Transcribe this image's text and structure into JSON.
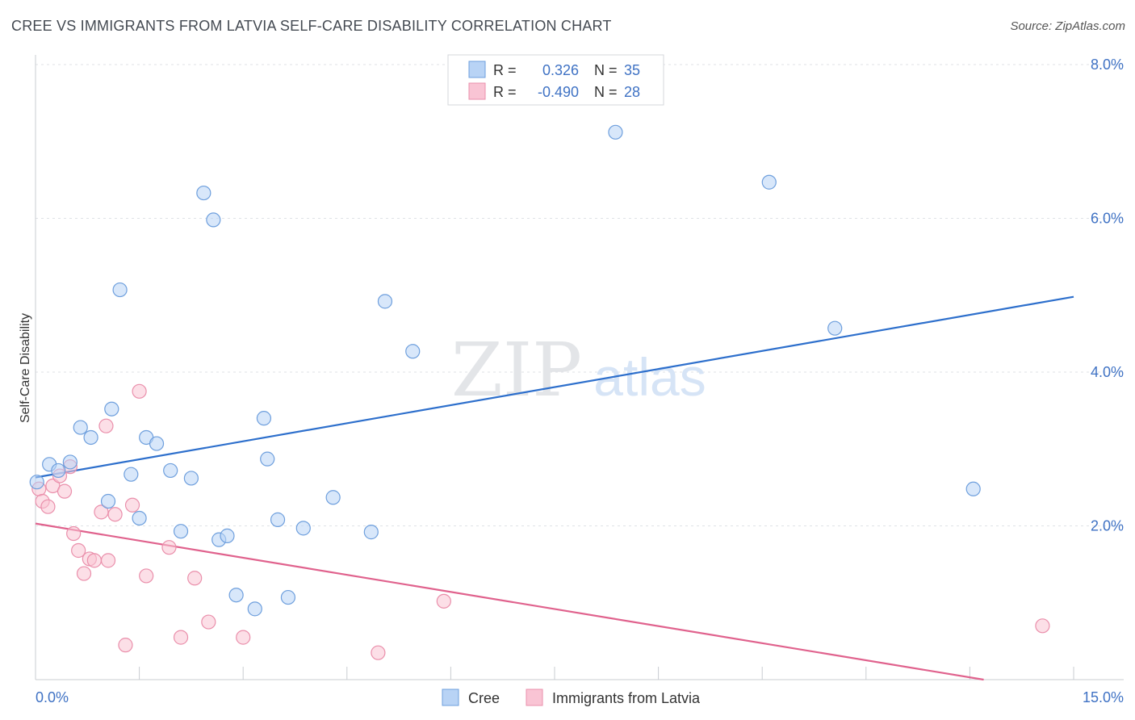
{
  "title": "CREE VS IMMIGRANTS FROM LATVIA SELF-CARE DISABILITY CORRELATION CHART",
  "source": "Source: ZipAtlas.com",
  "watermark": {
    "zip": "ZIP",
    "atlas": "atlas"
  },
  "legend_top": [
    {
      "r_label": "R =",
      "r_value": "0.326",
      "n_label": "N =",
      "n_value": "35"
    },
    {
      "r_label": "R =",
      "r_value": "-0.490",
      "n_label": "N =",
      "n_value": "28"
    }
  ],
  "chart_data": {
    "type": "scatter",
    "ylabel": "Self-Care Disability",
    "xlim": [
      0,
      15
    ],
    "ylim": [
      0,
      8
    ],
    "x_tick_labels": [
      "0.0%",
      "15.0%"
    ],
    "y_ticks": [
      2,
      4,
      6,
      8
    ],
    "y_tick_labels": [
      "2.0%",
      "4.0%",
      "6.0%",
      "8.0%"
    ],
    "grid": true,
    "colors": {
      "cree_fill": "#b8d3f5",
      "cree_stroke": "#6e9fdd",
      "cree_line": "#2d6fcc",
      "latvia_fill": "#f9c4d4",
      "latvia_stroke": "#ea8fab",
      "latvia_line": "#e0628d",
      "accent_text": "#3f72c4"
    },
    "series": [
      {
        "name": "Cree",
        "points": [
          [
            0.02,
            2.57
          ],
          [
            0.2,
            2.8
          ],
          [
            0.33,
            2.72
          ],
          [
            0.5,
            2.83
          ],
          [
            0.65,
            3.28
          ],
          [
            0.8,
            3.15
          ],
          [
            1.05,
            2.32
          ],
          [
            1.1,
            3.52
          ],
          [
            1.22,
            5.07
          ],
          [
            1.38,
            2.67
          ],
          [
            1.5,
            2.1
          ],
          [
            1.6,
            3.15
          ],
          [
            1.75,
            3.07
          ],
          [
            1.95,
            2.72
          ],
          [
            2.1,
            1.93
          ],
          [
            2.25,
            2.62
          ],
          [
            2.43,
            6.33
          ],
          [
            2.57,
            5.98
          ],
          [
            2.65,
            1.82
          ],
          [
            2.77,
            1.87
          ],
          [
            2.9,
            1.1
          ],
          [
            3.17,
            0.92
          ],
          [
            3.3,
            3.4
          ],
          [
            3.35,
            2.87
          ],
          [
            3.5,
            2.08
          ],
          [
            3.65,
            1.07
          ],
          [
            3.87,
            1.97
          ],
          [
            4.3,
            2.37
          ],
          [
            4.85,
            1.92
          ],
          [
            5.05,
            4.92
          ],
          [
            5.45,
            4.27
          ],
          [
            8.38,
            7.12
          ],
          [
            10.6,
            6.47
          ],
          [
            11.55,
            4.57
          ],
          [
            13.55,
            2.48
          ]
        ],
        "trend": [
          [
            0,
            2.63
          ],
          [
            15,
            4.98
          ]
        ]
      },
      {
        "name": "Immigrants from Latvia",
        "points": [
          [
            0.05,
            2.48
          ],
          [
            0.1,
            2.32
          ],
          [
            0.18,
            2.25
          ],
          [
            0.25,
            2.52
          ],
          [
            0.35,
            2.65
          ],
          [
            0.42,
            2.45
          ],
          [
            0.5,
            2.77
          ],
          [
            0.55,
            1.9
          ],
          [
            0.62,
            1.68
          ],
          [
            0.7,
            1.38
          ],
          [
            0.78,
            1.57
          ],
          [
            0.85,
            1.55
          ],
          [
            0.95,
            2.18
          ],
          [
            1.02,
            3.3
          ],
          [
            1.05,
            1.55
          ],
          [
            1.15,
            2.15
          ],
          [
            1.3,
            0.45
          ],
          [
            1.4,
            2.27
          ],
          [
            1.5,
            3.75
          ],
          [
            1.6,
            1.35
          ],
          [
            1.93,
            1.72
          ],
          [
            2.1,
            0.55
          ],
          [
            2.3,
            1.32
          ],
          [
            2.5,
            0.75
          ],
          [
            3.0,
            0.55
          ],
          [
            4.95,
            0.35
          ],
          [
            5.9,
            1.02
          ],
          [
            14.55,
            0.7
          ]
        ],
        "trend": [
          [
            0,
            2.03
          ],
          [
            13.7,
            0
          ]
        ]
      }
    ]
  }
}
